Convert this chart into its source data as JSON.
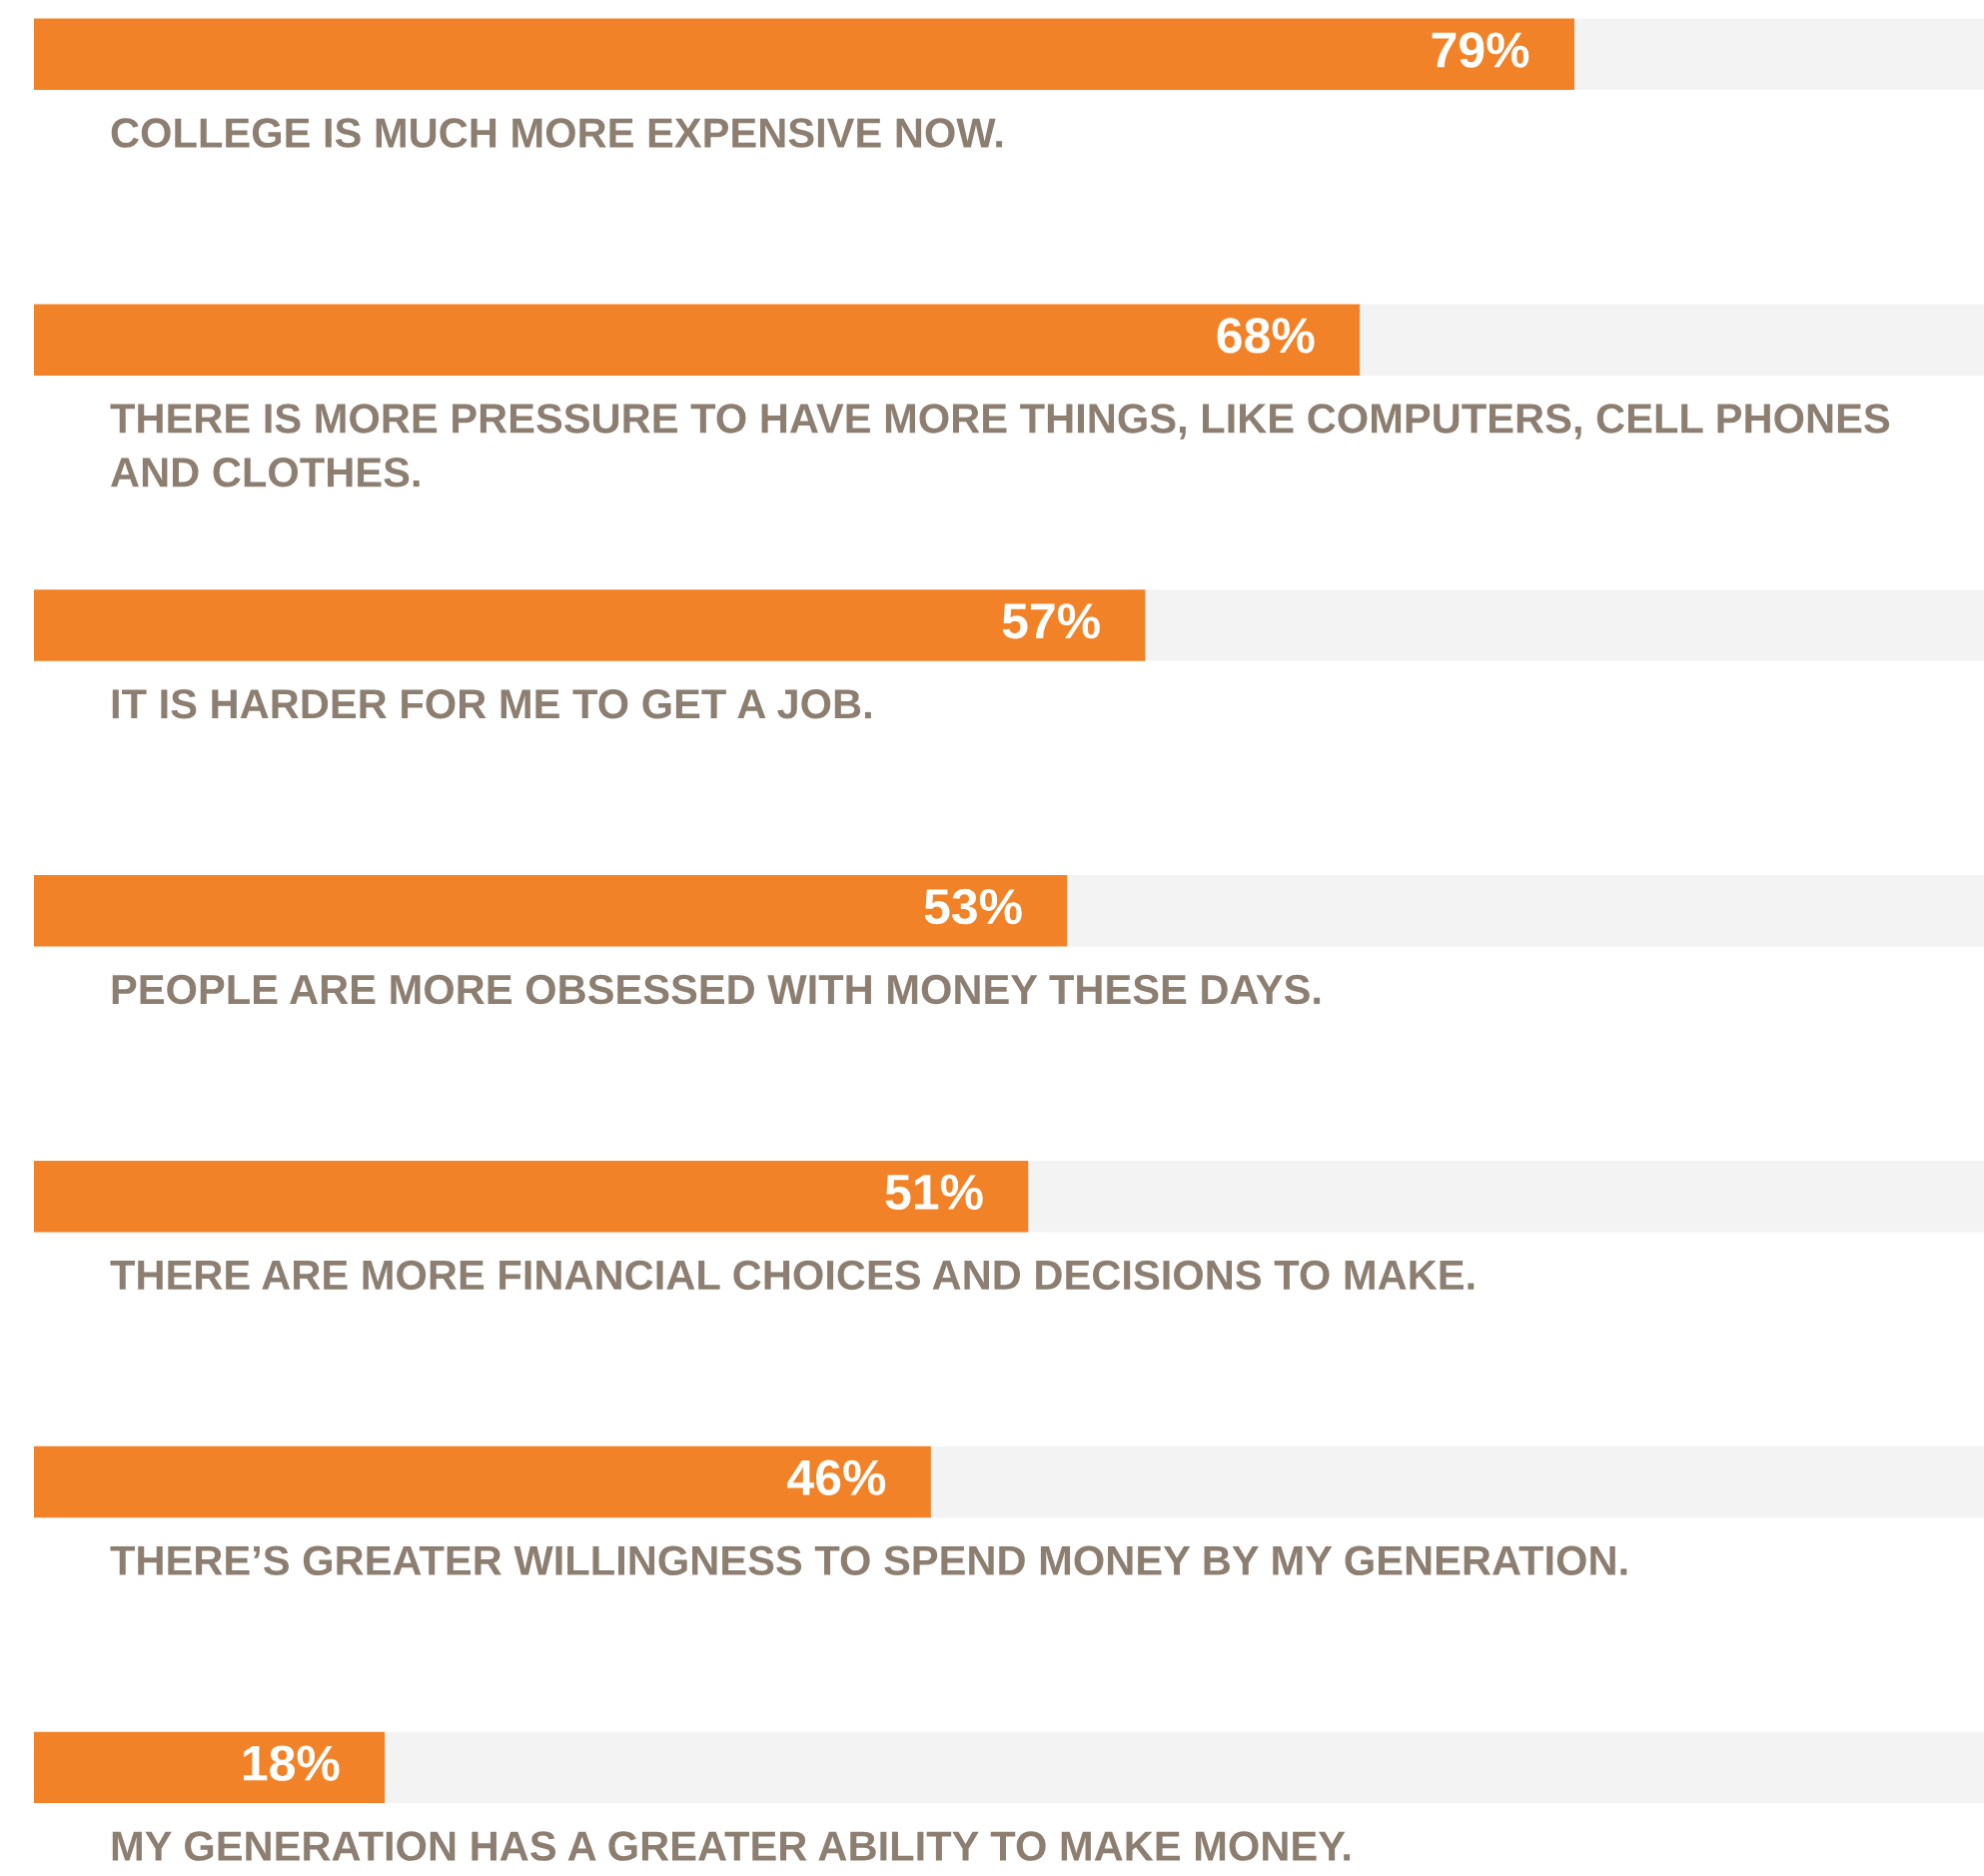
{
  "chart_data": {
    "type": "bar",
    "orientation": "horizontal",
    "stacked": true,
    "categories": [
      "COLLEGE IS MUCH MORE EXPENSIVE NOW.",
      "THERE IS MORE PRESSURE TO HAVE MORE THINGS, LIKE COMPUTERS, CELL PHONES AND CLOTHES.",
      "IT IS HARDER FOR ME TO GET A JOB.",
      "PEOPLE ARE MORE OBSESSED WITH MONEY THESE DAYS.",
      "THERE ARE MORE FINANCIAL CHOICES AND DECISIONS TO MAKE.",
      "THERE’S GREATER WILLINGNESS TO SPEND MONEY BY MY GENERATION.",
      "MY GENERATION HAS A GREATER ABILITY TO MAKE MONEY."
    ],
    "series": [
      {
        "color": "#f28227",
        "values": [
          79,
          68,
          57,
          53,
          51,
          46,
          18
        ],
        "value_labels": [
          "79%",
          "68%",
          "57%",
          "53%",
          "51%",
          "46%",
          "18%"
        ]
      },
      {
        "color": "#f3f3f3",
        "values": [
          21,
          32,
          43,
          47,
          49,
          54,
          82
        ]
      }
    ],
    "legend": false
  }
}
